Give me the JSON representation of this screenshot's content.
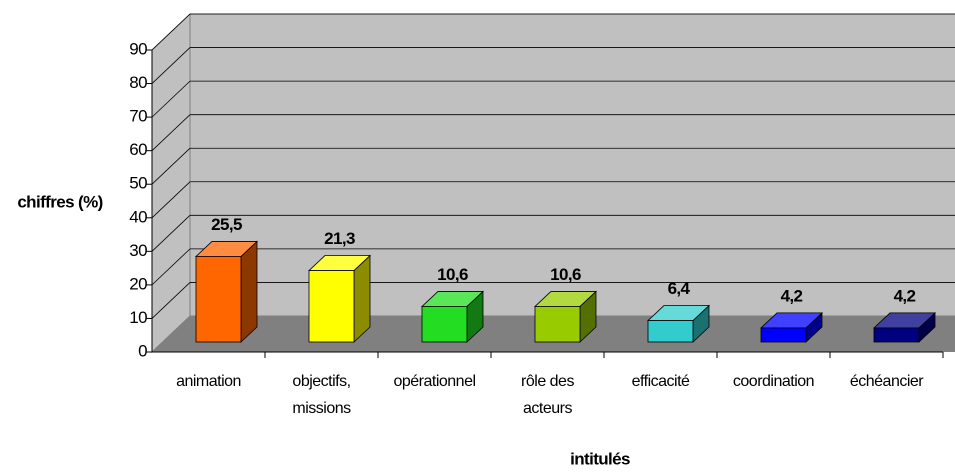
{
  "chart_data": {
    "type": "bar3d",
    "categories": [
      "animation",
      "objectifs, missions",
      "opérationnel",
      "rôle des acteurs",
      "efficacité",
      "coordination",
      "échéancier"
    ],
    "values": [
      25.5,
      21.3,
      10.6,
      10.6,
      6.4,
      4.2,
      4.2
    ],
    "value_labels": [
      "25,5",
      "21,3",
      "10,6",
      "10,6",
      "6,4",
      "4,2",
      "4,2"
    ],
    "colors": [
      "#ff6600",
      "#ffff00",
      "#22dd22",
      "#99cc00",
      "#33cccc",
      "#0000ff",
      "#000080"
    ],
    "y_label": "chiffres (%)",
    "x_label": "intitulés",
    "ylim": [
      0,
      90
    ],
    "yticks": [
      0,
      10,
      20,
      30,
      40,
      50,
      60,
      70,
      80,
      90
    ],
    "grid": true
  }
}
